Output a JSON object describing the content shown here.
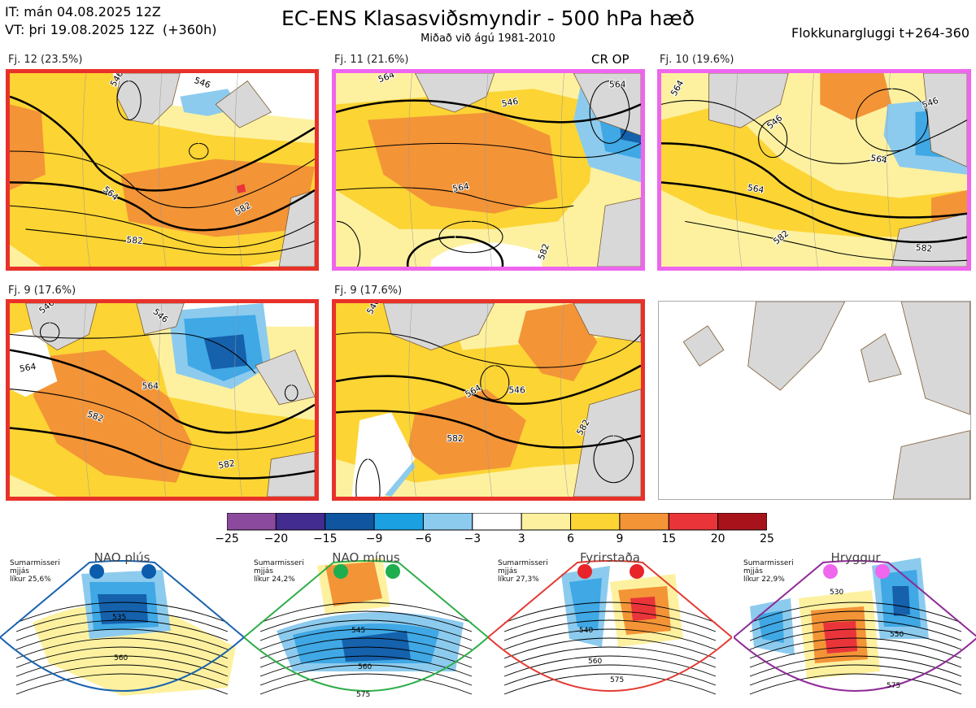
{
  "header": {
    "it_line": "IT: mán 04.08.2025 12Z",
    "vt_line": "VT: þri 19.08.2025 12Z  (+360h)",
    "title": "EC-ENS Klasasviðsmyndir - 500 hPa hæð",
    "subtitle": "Miðað við ágú 1981-2010",
    "window": "Flokkunargluggi t+264-360"
  },
  "cr_op": "CR OP",
  "colors": {
    "fill": {
      "p3": "#fdf1a0",
      "p6": "#fcd434",
      "p9": "#f39437",
      "p15": "#e9353a",
      "m3": "#8ccbee",
      "m6": "#3fa8e5",
      "m9": "#1561ac"
    },
    "land": "#d8d8d8",
    "coast": "#7a5a30",
    "contour": "#000000"
  },
  "panels": [
    {
      "id": "p1",
      "label": "Fj. 12 (23.5%)",
      "border": "#e8312a",
      "contour_labels": [
        "546",
        "546",
        "564",
        "582",
        "582"
      ]
    },
    {
      "id": "p2",
      "label": "Fj. 11 (21.6%)",
      "border": "#ee66ee",
      "contour_labels": [
        "564",
        "546",
        "564",
        "564",
        "582"
      ]
    },
    {
      "id": "p3",
      "label": "Fj. 10 (19.6%)",
      "border": "#ee66ee",
      "contour_labels": [
        "564",
        "546",
        "546",
        "564",
        "564",
        "582",
        "582"
      ]
    },
    {
      "id": "p4",
      "label": "Fj. 9 (17.6%)",
      "border": "#e8312a",
      "contour_labels": [
        "546",
        "546",
        "564",
        "564",
        "582",
        "582"
      ]
    },
    {
      "id": "p5",
      "label": "Fj. 9 (17.6%)",
      "border": "#e8312a",
      "contour_labels": [
        "546",
        "564",
        "546",
        "582",
        "582"
      ]
    }
  ],
  "chart_data": {
    "type": "heatmap",
    "title": "EC-ENS Klasasviðsmyndir - 500 hPa hæð",
    "variable": "500 hPa height anomaly (dam); contours 500 hPa height",
    "colorbar": {
      "ticks": [
        -25,
        -20,
        -15,
        -9,
        -6,
        -3,
        3,
        6,
        9,
        15,
        20,
        25
      ],
      "tick_labels": [
        "−25",
        "−20",
        "−15",
        "−9",
        "−6",
        "−3",
        "3",
        "6",
        "9",
        "15",
        "20",
        "25"
      ],
      "colors": [
        "#8b4a9e",
        "#432c8f",
        "#0f559f",
        "#1ba0e2",
        "#8ccbee",
        "#ffffff",
        "#fdf1a0",
        "#fcd434",
        "#f39437",
        "#e9353a",
        "#a8131b"
      ]
    },
    "clusters": [
      {
        "name": "Fj. 12",
        "probability": 23.5
      },
      {
        "name": "Fj. 11",
        "probability": 21.6
      },
      {
        "name": "Fj. 10",
        "probability": 19.6
      },
      {
        "name": "Fj. 9",
        "probability": 17.6
      },
      {
        "name": "Fj. 9",
        "probability": 17.6
      }
    ]
  },
  "regimes": [
    {
      "id": "nao-plus",
      "title": "NAO plús",
      "note": "Sumarmisseri\nmjjás\nlíkur 25,6%",
      "dot_color": "#0b5cad",
      "frame": "#1a63ad",
      "labels": [
        "535",
        "560"
      ]
    },
    {
      "id": "nao-minus",
      "title": "NAO mínus",
      "note": "Sumarmisseri\nmjjás\nlíkur 24,2%",
      "dot_color": "#1fae4e",
      "frame": "#2fae4a",
      "labels": [
        "545",
        "560",
        "575"
      ]
    },
    {
      "id": "blocking",
      "title": "Fyrirstaða",
      "note": "Sumarmisseri\nmjjás\nlíkur 27,3%",
      "dot_color": "#e8232a",
      "frame": "#e33c34",
      "labels": [
        "540",
        "560",
        "575"
      ]
    },
    {
      "id": "ridge",
      "title": "Hryggur",
      "note": "Sumarmisseri\nmjjás\nlíkur 22,9%",
      "dot_color": "#f066ee",
      "frame": "#8f2b97",
      "labels": [
        "530",
        "550",
        "575"
      ]
    }
  ]
}
